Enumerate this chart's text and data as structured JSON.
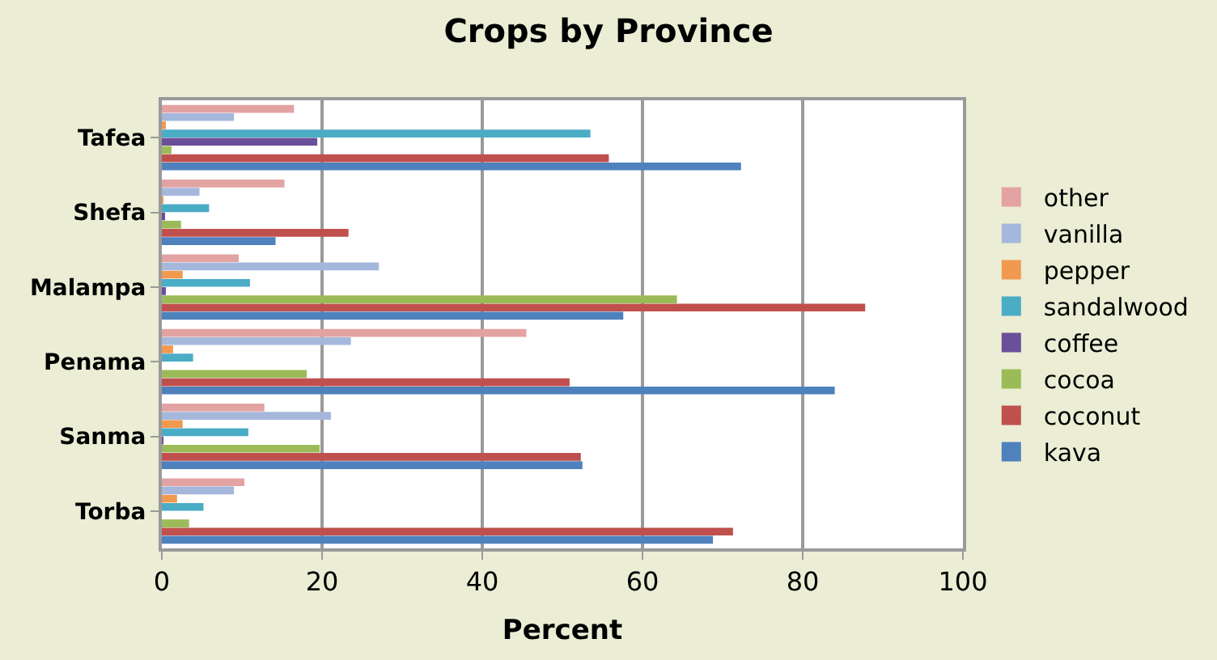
{
  "chart_data": {
    "type": "bar",
    "orientation": "horizontal",
    "title": "Crops by Province",
    "xlabel": "Percent",
    "categories": [
      "Tafea",
      "Shefa",
      "Malampa",
      "Penama",
      "Sanma",
      "Torba"
    ],
    "series": [
      {
        "name": "other",
        "color": "#e3a3a2",
        "values": [
          16.5,
          15.3,
          9.6,
          45.5,
          12.8,
          10.3
        ]
      },
      {
        "name": "vanilla",
        "color": "#a5b8dc",
        "values": [
          9.0,
          4.7,
          27.1,
          23.6,
          21.1,
          9.0
        ]
      },
      {
        "name": "pepper",
        "color": "#f0994f",
        "values": [
          0.5,
          0.2,
          2.6,
          1.4,
          2.6,
          1.9
        ]
      },
      {
        "name": "sandalwood",
        "color": "#4bacc6",
        "values": [
          53.5,
          5.9,
          11.0,
          3.9,
          10.8,
          5.2
        ]
      },
      {
        "name": "coffee",
        "color": "#6a4f9a",
        "values": [
          19.4,
          0.4,
          0.5,
          0,
          0.2,
          0
        ]
      },
      {
        "name": "cocoa",
        "color": "#9bbb59",
        "values": [
          1.2,
          2.4,
          64.3,
          18.1,
          19.7,
          3.4
        ]
      },
      {
        "name": "coconut",
        "color": "#c0504d",
        "values": [
          55.8,
          23.3,
          87.8,
          50.9,
          52.3,
          71.3
        ]
      },
      {
        "name": "kava",
        "color": "#4f81bd",
        "values": [
          72.3,
          14.2,
          57.6,
          84.0,
          52.5,
          68.8
        ]
      }
    ],
    "xlim": [
      0,
      100
    ],
    "xticks": [
      0,
      20,
      40,
      60,
      80,
      100
    ],
    "grid": "x",
    "legend": "right"
  }
}
